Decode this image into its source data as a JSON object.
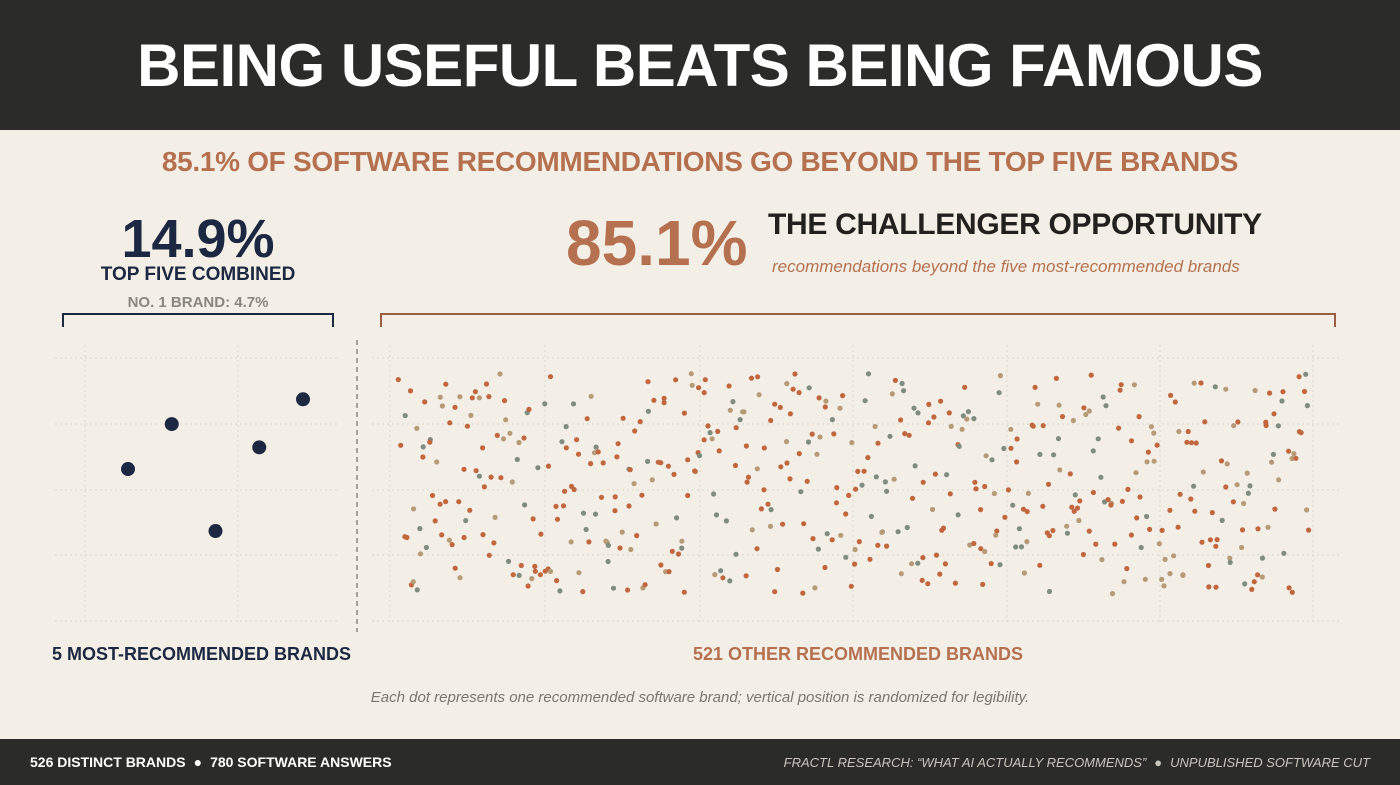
{
  "header": {
    "title": "BEING USEFUL BEATS BEING FAMOUS"
  },
  "subtitle": "85.1% OF SOFTWARE RECOMMENDATIONS GO BEYOND THE TOP FIVE BRANDS",
  "top_five": {
    "share": "14.9%",
    "label": "TOP FIVE COMBINED",
    "note": "NO. 1 BRAND: 4.7%"
  },
  "challenger": {
    "share": "85.1%",
    "title": "THE CHALLENGER OPPORTUNITY",
    "subtitle": "recommendations beyond the five most-recommended brands"
  },
  "captions": {
    "left": "5 MOST-RECOMMENDED BRANDS",
    "right": "521 OTHER RECOMMENDED BRANDS"
  },
  "note": "Each dot represents one recommended software brand; vertical position is randomized for legibility.",
  "footer": {
    "left_a": "526 DISTINCT BRANDS",
    "bullet": "●",
    "left_b": "780 SOFTWARE ANSWERS",
    "right_a": "FRACTL RESEARCH: “WHAT AI ACTUALLY RECOMMENDS”",
    "right_b": "UNPUBLISHED SOFTWARE CUT"
  },
  "colors": {
    "navy": "#1c2841",
    "terracotta": "#c1673f",
    "sand": "#b79a78",
    "sage": "#7e8d80",
    "header_bg": "#2b2b29",
    "background": "#f4efe6"
  },
  "chart_data": {
    "type": "scatter",
    "groups": [
      {
        "name": "5 MOST-RECOMMENDED BRANDS",
        "count": 5,
        "share_percent": 14.9
      },
      {
        "name": "521 OTHER RECOMMENDED BRANDS",
        "count": 521,
        "share_percent": 85.1
      }
    ],
    "top_brand_share_percent": 4.7,
    "y_axis": "randomized",
    "grid": true
  }
}
